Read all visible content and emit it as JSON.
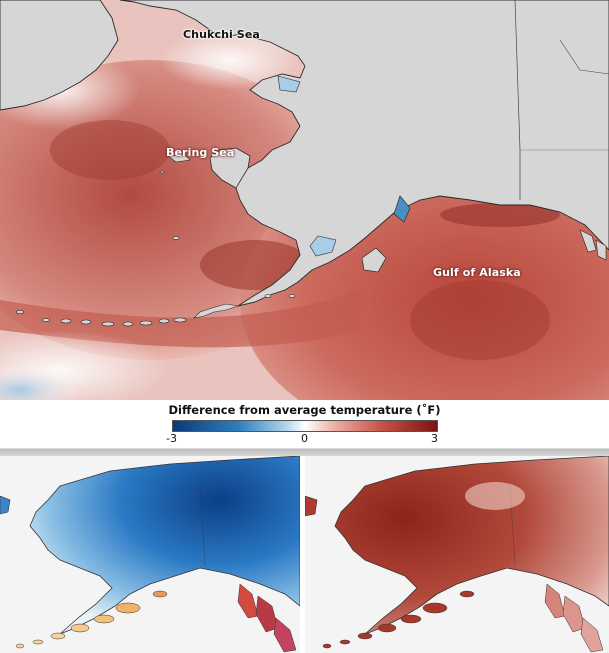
{
  "map_labels": {
    "chukchi": "Chukchi Sea",
    "bering": "Bering Sea",
    "gulf": "Gulf of Alaska"
  },
  "legend": {
    "title": "Difference from average temperature (˚F)",
    "min_label": "-3",
    "mid_label": "0",
    "max_label": "3",
    "range": [
      -3,
      3
    ],
    "colors": {
      "cold": "#0a3a7a",
      "neutral": "#ffffff",
      "warm": "#7a1410"
    }
  },
  "colors": {
    "land": "#d6d6d6",
    "ocean_warm": "#c8645a",
    "ocean_deep_warm": "#a8362c",
    "panel_cold": "#1860b0",
    "panel_warm": "#b04434"
  }
}
